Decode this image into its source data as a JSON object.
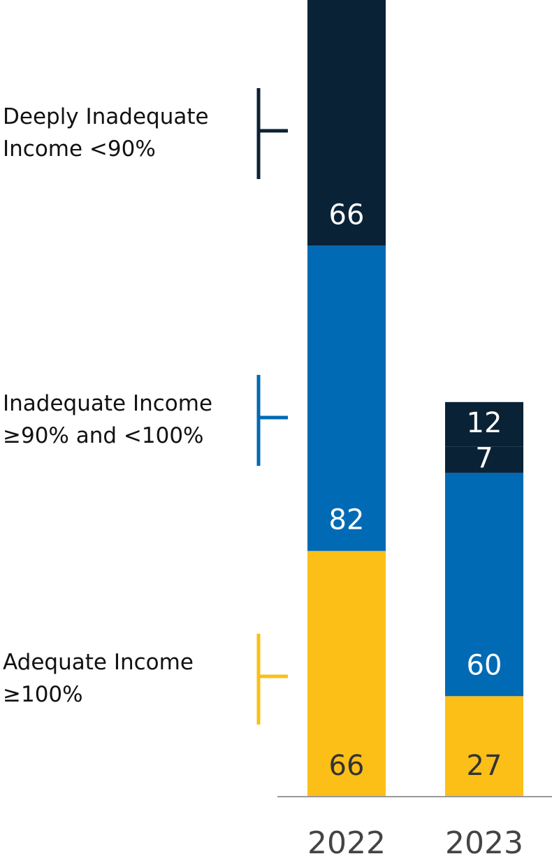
{
  "chart_data": {
    "type": "stacked_bar",
    "categories": [
      "2022",
      "2023"
    ],
    "series": [
      {
        "name": "Adequate Income ≥100%",
        "color": "#fcbf17",
        "label_color": "#333333",
        "values": [
          66,
          27
        ]
      },
      {
        "name": "Inadequate Income ≥90% and <100%",
        "color": "#006ab4",
        "label_color": "#ffffff",
        "values": [
          82,
          60
        ]
      },
      {
        "name": "Deeply Inadequate Income <90%",
        "color": "#0a2236",
        "label_color": "#ffffff",
        "values": [
          66,
          7
        ]
      },
      {
        "color": "#0a2236",
        "label_color": "#ffffff",
        "values": [
          null,
          12
        ]
      }
    ],
    "ylim": [
      0,
      214
    ]
  }
}
